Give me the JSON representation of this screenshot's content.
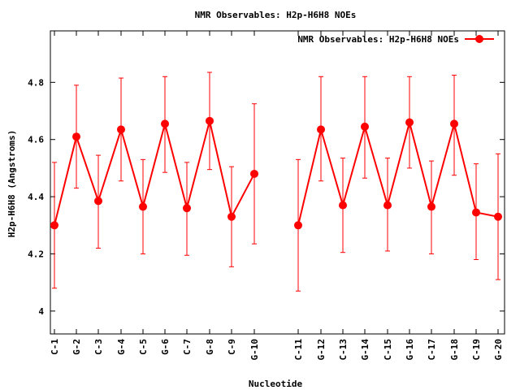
{
  "chart_data": {
    "type": "line",
    "title": "NMR Observables: H2p-H6H8 NOEs",
    "xlabel": "Nucleotide",
    "ylabel": "H2p-H6H8 (Angstroms)",
    "legend": {
      "label": "NMR Observables: H2p-H6H8 NOEs",
      "position": "top-right"
    },
    "ylim": [
      3.92,
      4.98
    ],
    "yticks": [
      "4",
      "4.2",
      "4.4",
      "4.6",
      "4.8"
    ],
    "categories": [
      "C-1",
      "G-2",
      "C-3",
      "G-4",
      "C-5",
      "G-6",
      "C-7",
      "G-8",
      "C-9",
      "G-10",
      "C-11",
      "G-12",
      "C-13",
      "G-14",
      "C-15",
      "G-16",
      "C-17",
      "G-18",
      "C-19",
      "G-20"
    ],
    "series": [
      {
        "name": "NMR Observables: H2p-H6H8 NOEs",
        "color": "#ff0000",
        "values": [
          4.3,
          4.61,
          4.385,
          4.635,
          4.365,
          4.655,
          4.36,
          4.665,
          4.33,
          4.48,
          4.3,
          4.635,
          4.37,
          4.645,
          4.37,
          4.66,
          4.365,
          4.655,
          4.345,
          4.33
        ],
        "err_low": [
          4.08,
          4.43,
          4.22,
          4.455,
          4.2,
          4.485,
          4.195,
          4.495,
          4.155,
          4.235,
          4.07,
          4.455,
          4.205,
          4.465,
          4.21,
          4.5,
          4.2,
          4.475,
          4.18,
          4.11
        ],
        "err_high": [
          4.52,
          4.79,
          4.545,
          4.815,
          4.53,
          4.82,
          4.52,
          4.835,
          4.505,
          4.725,
          4.53,
          4.82,
          4.535,
          4.82,
          4.535,
          4.82,
          4.525,
          4.825,
          4.515,
          4.55
        ],
        "break_after": "G-10"
      }
    ]
  }
}
